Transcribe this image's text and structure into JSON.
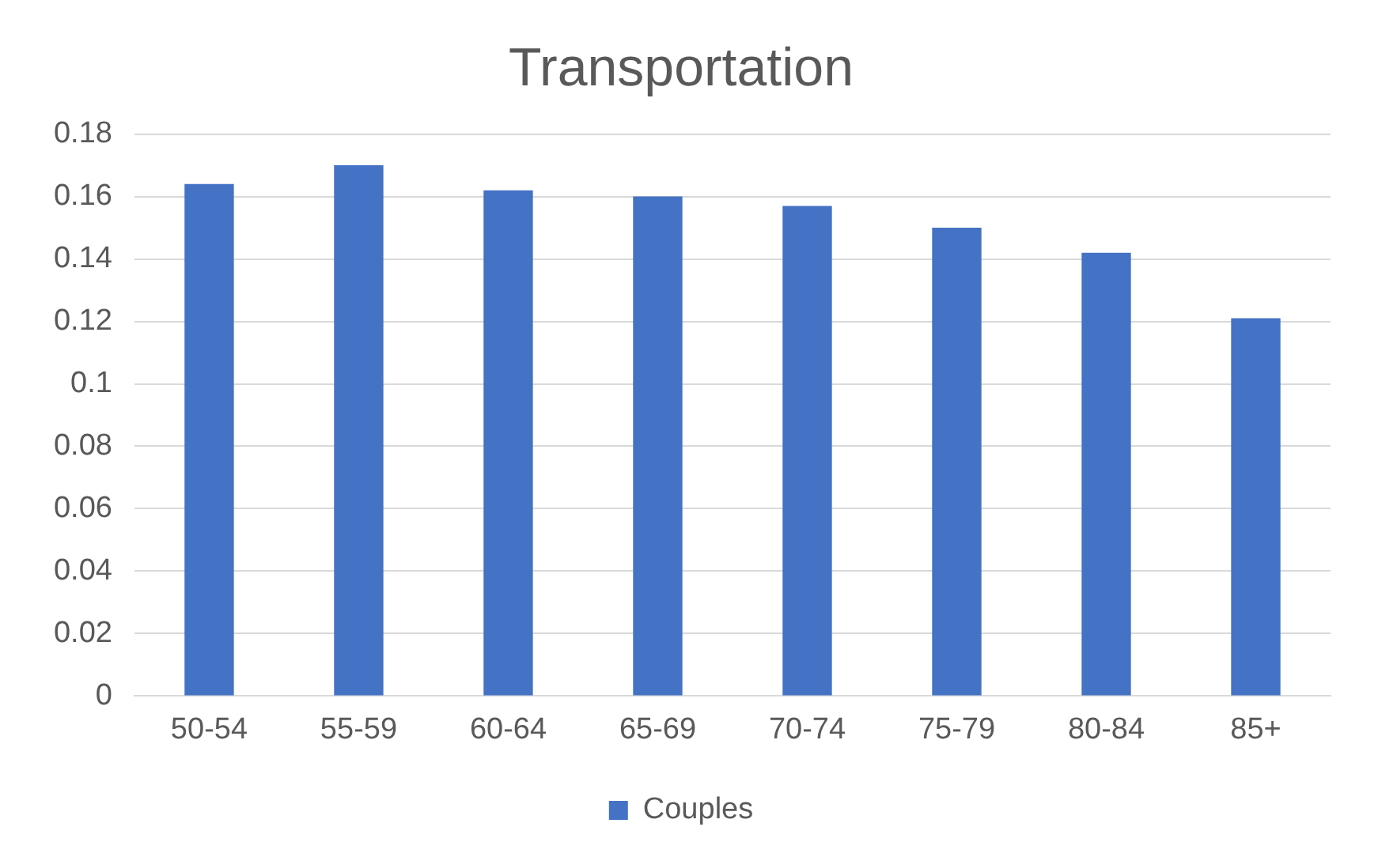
{
  "chart_data": {
    "type": "bar",
    "title": "Transportation",
    "categories": [
      "50-54",
      "55-59",
      "60-64",
      "65-69",
      "70-74",
      "75-79",
      "80-84",
      "85+"
    ],
    "series": [
      {
        "name": "Couples",
        "color": "#4472c4",
        "values": [
          0.164,
          0.17,
          0.162,
          0.16,
          0.157,
          0.15,
          0.142,
          0.121
        ]
      }
    ],
    "ylim": [
      0,
      0.18
    ],
    "yticks": [
      0,
      0.02,
      0.04,
      0.06,
      0.08,
      0.1,
      0.12,
      0.14,
      0.16,
      0.18
    ],
    "grid": "y",
    "legend": "bottom"
  }
}
